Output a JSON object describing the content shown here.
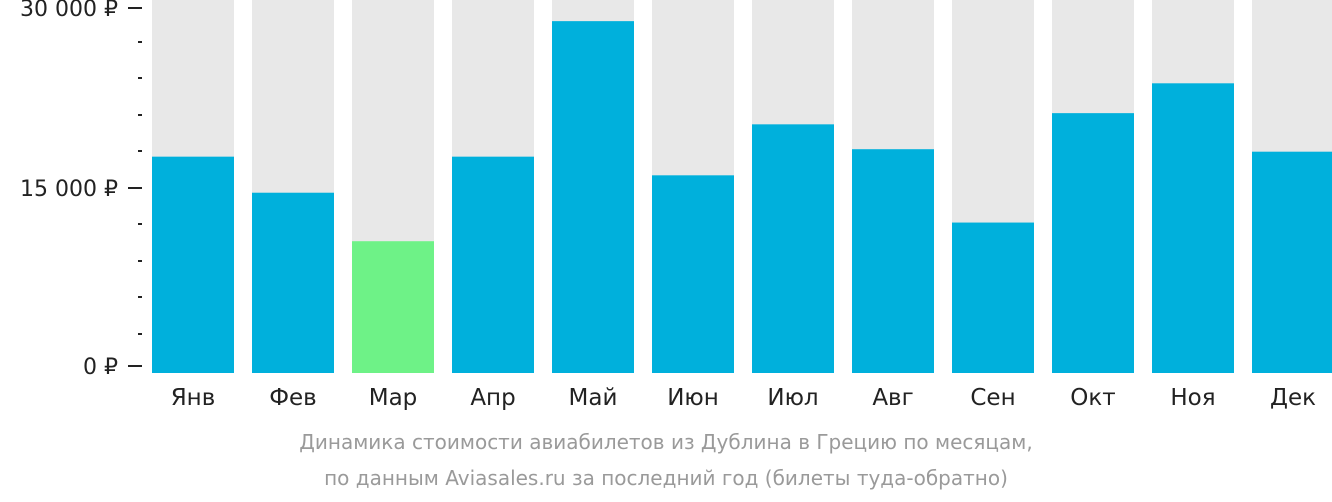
{
  "chart_data": {
    "type": "bar",
    "categories": [
      "Янв",
      "Фев",
      "Мар",
      "Апр",
      "Май",
      "Июн",
      "Июл",
      "Авг",
      "Сен",
      "Окт",
      "Ноя",
      "Дек"
    ],
    "values": [
      17400,
      14500,
      10600,
      17400,
      28300,
      15900,
      20000,
      18000,
      12100,
      20900,
      23300,
      17800
    ],
    "ylim": [
      0,
      30000
    ],
    "y_ticks": [
      "0 ₽",
      "15 000 ₽",
      "30 000 ₽"
    ],
    "highlight_index": 2,
    "colors": {
      "bar": "#00b0dc",
      "highlight": "#6ef287",
      "track": "#e8e8e8"
    },
    "grid": false
  },
  "caption": {
    "line1": "Динамика стоимости авиабилетов из Дублина в Грецию по месяцам,",
    "line2": "по данным Aviasales.ru за последний год (билеты туда-обратно)"
  }
}
